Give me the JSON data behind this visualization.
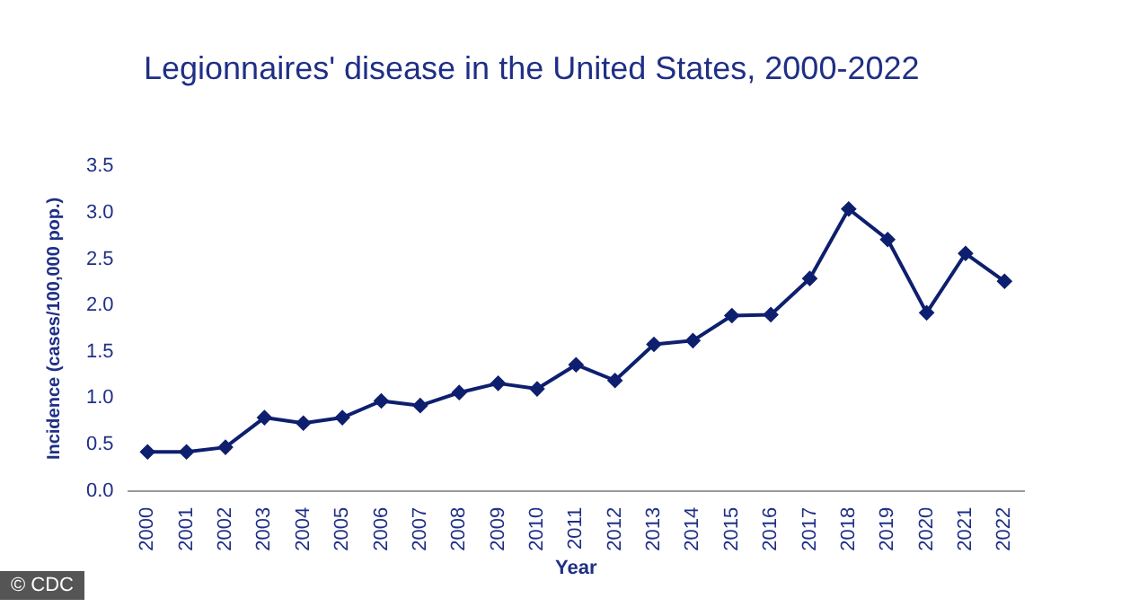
{
  "chart_data": {
    "type": "line",
    "title": "Legionnaires' disease in the United States, 2000-2022",
    "xlabel": "Year",
    "ylabel": "Incidence (cases/100,000 pop.)",
    "categories": [
      "2000",
      "2001",
      "2002",
      "2003",
      "2004",
      "2005",
      "2006",
      "2007",
      "2008",
      "2009",
      "2010",
      "2011",
      "2012",
      "2013",
      "2014",
      "2015",
      "2016",
      "2017",
      "2018",
      "2019",
      "2020",
      "2021",
      "2022"
    ],
    "series": [
      {
        "color": "#0d1f6e",
        "values": [
          0.42,
          0.42,
          0.47,
          0.79,
          0.73,
          0.79,
          0.97,
          0.92,
          1.06,
          1.16,
          1.1,
          1.36,
          1.19,
          1.58,
          1.62,
          1.89,
          1.9,
          2.29,
          3.04,
          2.71,
          1.92,
          2.56,
          2.26
        ]
      }
    ],
    "ylim": [
      0,
      3.5
    ],
    "yticks": [
      {
        "value": 0,
        "label": "0.0"
      },
      0.5,
      {
        "value": 1,
        "label": "1.0"
      },
      1.5,
      {
        "value": 2,
        "label": "2.0"
      },
      2.5,
      {
        "value": 3,
        "label": "3.0"
      },
      3.5
    ],
    "grid": false,
    "legend": false,
    "marker": "diamond",
    "line_style": "solid",
    "annotations": [
      "© CDC"
    ]
  }
}
